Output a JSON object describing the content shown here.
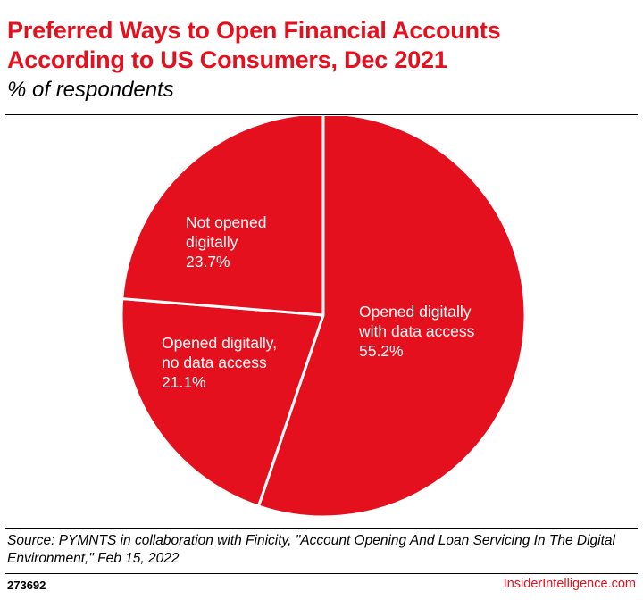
{
  "header": {
    "title": "Preferred Ways to Open Financial Accounts\nAccording to US Consumers, Dec 2021",
    "subtitle": "% of respondents"
  },
  "chart_data": {
    "type": "pie",
    "title": "Preferred Ways to Open Financial Accounts According to US Consumers, Dec 2021",
    "subtitle": "% of respondents",
    "slices": [
      {
        "label": [
          "Opened digitally",
          "with data access"
        ],
        "value": 55.2,
        "value_text": "55.2%"
      },
      {
        "label": [
          "Opened digitally,",
          "no data access"
        ],
        "value": 21.1,
        "value_text": "21.1%"
      },
      {
        "label": [
          "Not opened",
          "digitally"
        ],
        "value": 23.7,
        "value_text": "23.7%"
      }
    ],
    "colors": {
      "slice": "#e5101e",
      "separator": "#ffffff"
    }
  },
  "footer": {
    "source": "Source: PYMNTS in collaboration with Finicity, \"Account Opening And Loan Servicing In The Digital Environment,\" Feb 15, 2022",
    "chart_id": "273692",
    "brand": "InsiderIntelligence.com"
  }
}
